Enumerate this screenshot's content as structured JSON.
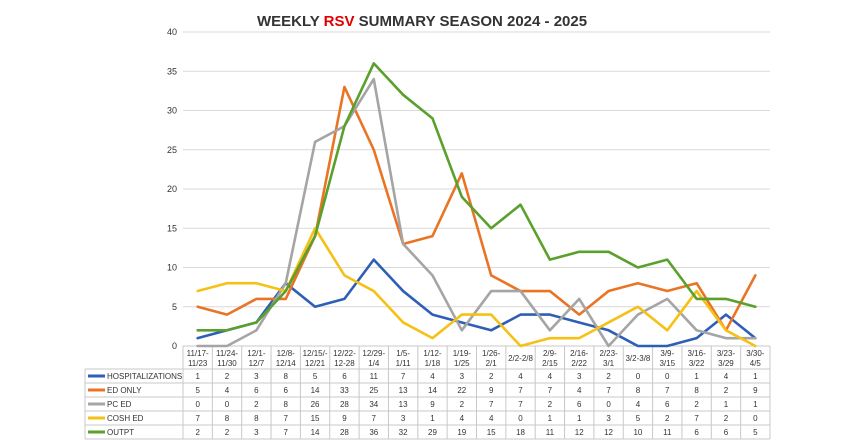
{
  "chart_data": {
    "type": "line",
    "title": {
      "prefix": "WEEKLY ",
      "accent": "RSV",
      "suffix": " SUMMARY SEASON 2024 - 2025"
    },
    "accent_color": "#e00000",
    "ylim": [
      0,
      40
    ],
    "yticks": [
      0,
      5,
      10,
      15,
      20,
      25,
      30,
      35,
      40
    ],
    "grid": true,
    "legend": "data-table-below",
    "categories": [
      [
        "11/17-",
        "11/23"
      ],
      [
        "11/24-",
        "11/30"
      ],
      [
        "12/1-",
        "12/7"
      ],
      [
        "12/8-",
        "12/14"
      ],
      [
        "12/15/-",
        "12/21"
      ],
      [
        "12/22-",
        "12-28"
      ],
      [
        "12/29-",
        "1/4"
      ],
      [
        "1/5-",
        "1/11"
      ],
      [
        "1/12-",
        "1/18"
      ],
      [
        "1/19-",
        "1/25"
      ],
      [
        "1/26-",
        "2/1"
      ],
      [
        "2/2-2/8"
      ],
      [
        "2/9-",
        "2/15"
      ],
      [
        "2/16-",
        "2/22"
      ],
      [
        "2/23-",
        "3/1"
      ],
      [
        "3/2-3/8"
      ],
      [
        "3/9-",
        "3/15"
      ],
      [
        "3/16-",
        "3/22"
      ],
      [
        "3/23-",
        "3/29"
      ],
      [
        "3/30-",
        "4/5"
      ]
    ],
    "series": [
      {
        "name": "HOSPITALIZATIONS",
        "color": "#2e5fb4",
        "values": [
          1,
          2,
          3,
          8,
          5,
          6,
          11,
          7,
          4,
          3,
          2,
          4,
          4,
          3,
          2,
          0,
          0,
          1,
          4,
          1
        ]
      },
      {
        "name": "ED ONLY",
        "color": "#ea7425",
        "values": [
          5,
          4,
          6,
          6,
          14,
          33,
          25,
          13,
          14,
          22,
          9,
          7,
          7,
          4,
          7,
          8,
          7,
          8,
          2,
          9
        ]
      },
      {
        "name": "PC ED",
        "color": "#a5a5a5",
        "values": [
          0,
          0,
          2,
          8,
          26,
          28,
          34,
          13,
          9,
          2,
          7,
          7,
          2,
          6,
          0,
          4,
          6,
          2,
          1,
          1
        ]
      },
      {
        "name": "COSH ED",
        "color": "#f5c116",
        "values": [
          7,
          8,
          8,
          7,
          15,
          9,
          7,
          3,
          1,
          4,
          4,
          0,
          1,
          1,
          3,
          5,
          2,
          7,
          2,
          0
        ]
      },
      {
        "name": "OUTPT",
        "color": "#5aa02c",
        "values": [
          2,
          2,
          3,
          7,
          14,
          28,
          36,
          32,
          29,
          19,
          15,
          18,
          11,
          12,
          12,
          10,
          11,
          6,
          6,
          5
        ]
      }
    ]
  }
}
